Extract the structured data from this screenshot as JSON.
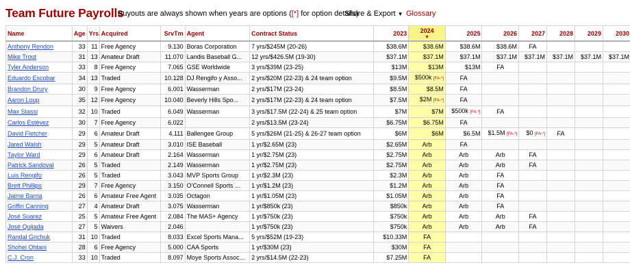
{
  "header": {
    "title": "Team Future Payrolls",
    "note_prefix": "Buyouts are always shown when years are options (",
    "note_marker": "[*]",
    "note_suffix": " for option details)",
    "share_label": "Share & Export",
    "glossary_label": "Glossary"
  },
  "columns": {
    "name": "Name",
    "age": "Age",
    "yrs": "Yrs",
    "acquired": "Acquired",
    "srvtm": "SrvTm",
    "agent": "Agent",
    "contract": "Contract Status",
    "y2023": "2023",
    "y2024": "2024",
    "y2025": "2025",
    "y2026": "2026",
    "y2027": "2027",
    "y2028": "2028",
    "y2029": "2029",
    "y2030": "2030"
  },
  "rows": [
    {
      "name": "Anthony Rendon",
      "age": "33",
      "yrs": "11",
      "acq": "Free Agency",
      "srv": "9.130",
      "agent": "Boras Corporation",
      "contract": "7 yrs/$245M (20-26)",
      "y23": "$38.6M",
      "y24": "$38.6M",
      "y25": "$38.6M",
      "y26": "$38.6M",
      "y27": "FA",
      "y28": "",
      "y29": "",
      "y30": ""
    },
    {
      "name": "Mike Trout",
      "age": "31",
      "yrs": "13",
      "acq": "Amateur Draft",
      "srv": "11.070",
      "agent": "Landis Baseball G...",
      "contract": "12 yrs/$426.5M (19-30)",
      "y23": "$37.1M",
      "y24": "$37.1M",
      "y25": "$37.1M",
      "y26": "$37.1M",
      "y27": "$37.1M",
      "y28": "$37.1M",
      "y29": "$37.1M",
      "y30": "$37.1M"
    },
    {
      "name": "Tyler Anderson",
      "age": "33",
      "yrs": "8",
      "acq": "Free Agency",
      "srv": "7.065",
      "agent": "GSE Worldwide",
      "contract": "3 yrs/$39M (23-25)",
      "y23": "$13M",
      "y24": "$13M",
      "y25": "$13M",
      "y26": "FA",
      "y27": "",
      "y28": "",
      "y29": "",
      "y30": ""
    },
    {
      "name": "Eduardo Escobar",
      "age": "34",
      "yrs": "13",
      "acq": "Traded",
      "srv": "10.128",
      "agent": "DJ Rengifo y Asso...",
      "contract": "2 yrs/$20M (22-23) & 24 team option",
      "y23": "$9.5M",
      "y24": "$500k",
      "y24f": "[FA-*]",
      "y25": "FA",
      "y26": "",
      "y27": "",
      "y28": "",
      "y29": "",
      "y30": ""
    },
    {
      "name": "Brandon Drury",
      "age": "30",
      "yrs": "9",
      "acq": "Free Agency",
      "srv": "6.001",
      "agent": "Wasserman",
      "contract": "2 yrs/$17M (23-24)",
      "y23": "$8.5M",
      "y24": "$8.5M",
      "y25": "FA",
      "y26": "",
      "y27": "",
      "y28": "",
      "y29": "",
      "y30": ""
    },
    {
      "name": "Aaron Loup",
      "age": "35",
      "yrs": "12",
      "acq": "Free Agency",
      "srv": "10.040",
      "agent": "Beverly Hills Spo...",
      "contract": "2 yrs/$17M (22-23) & 24 team option",
      "y23": "$7.5M",
      "y24": "$2M",
      "y24f": "[FA-*]",
      "y25": "FA",
      "y26": "",
      "y27": "",
      "y28": "",
      "y29": "",
      "y30": ""
    },
    {
      "name": "Max Stassi",
      "age": "32",
      "yrs": "10",
      "acq": "Traded",
      "srv": "6.049",
      "agent": "Wasserman",
      "contract": "3 yrs/$17.5M (22-24) & 25 team option",
      "y23": "$7M",
      "y24": "$7M",
      "y25": "$500k",
      "y25f": "[FA-*]",
      "y26": "FA",
      "y27": "",
      "y28": "",
      "y29": "",
      "y30": ""
    },
    {
      "name": "Carlos Estévez",
      "age": "30",
      "yrs": "7",
      "acq": "Free Agency",
      "srv": "6.022",
      "agent": "",
      "contract": "2 yrs/$13.5M (23-24)",
      "y23": "$6.75M",
      "y24": "$6.75M",
      "y25": "FA",
      "y26": "",
      "y27": "",
      "y28": "",
      "y29": "",
      "y30": ""
    },
    {
      "name": "David Fletcher",
      "age": "29",
      "yrs": "6",
      "acq": "Amateur Draft",
      "srv": "4.111",
      "agent": "Ballengee Group",
      "contract": "5 yrs/$26M (21-25) & 26-27 team option",
      "y23": "$6M",
      "y24": "$6M",
      "y25": "$6.5M",
      "y26": "$1.5M",
      "y26f": "[FA-*]",
      "y27": "$0",
      "y27f": "[FA-*]",
      "y28": "FA",
      "y29": "",
      "y30": ""
    },
    {
      "name": "Jared Walsh",
      "age": "29",
      "yrs": "5",
      "acq": "Amateur Draft",
      "srv": "3.010",
      "agent": "ISE Baseball",
      "contract": "1 yr/$2.65M (23)",
      "y23": "$2.65M",
      "y24": "Arb",
      "y25": "FA",
      "y26": "",
      "y27": "",
      "y28": "",
      "y29": "",
      "y30": ""
    },
    {
      "name": "Taylor Ward",
      "age": "29",
      "yrs": "6",
      "acq": "Amateur Draft",
      "srv": "2.164",
      "agent": "Wasserman",
      "contract": "1 yr/$2.75M (23)",
      "y23": "$2.75M",
      "y24": "Arb",
      "y25": "Arb",
      "y26": "Arb",
      "y27": "FA",
      "y28": "",
      "y29": "",
      "y30": ""
    },
    {
      "name": "Patrick Sandoval",
      "age": "26",
      "yrs": "5",
      "acq": "Traded",
      "srv": "2.149",
      "agent": "Wasserman",
      "contract": "1 yr/$2.75M (23)",
      "y23": "$2.75M",
      "y24": "Arb",
      "y25": "Arb",
      "y26": "Arb",
      "y27": "FA",
      "y28": "",
      "y29": "",
      "y30": ""
    },
    {
      "name": "Luis Rengifo",
      "age": "26",
      "yrs": "5",
      "acq": "Traded",
      "srv": "3.043",
      "agent": "MVP Sports Group",
      "contract": "1 yr/$2.3M (23)",
      "y23": "$2.3M",
      "y24": "Arb",
      "y25": "Arb",
      "y26": "FA",
      "y27": "",
      "y28": "",
      "y29": "",
      "y30": ""
    },
    {
      "name": "Brett Phillips",
      "age": "29",
      "yrs": "7",
      "acq": "Free Agency",
      "srv": "3.150",
      "agent": "O'Connell Sports ...",
      "contract": "1 yr/$1.2M (23)",
      "y23": "$1.2M",
      "y24": "Arb",
      "y25": "Arb",
      "y26": "FA",
      "y27": "",
      "y28": "",
      "y29": "",
      "y30": ""
    },
    {
      "name": "Jaime Barria",
      "age": "26",
      "yrs": "6",
      "acq": "Amateur Free Agent",
      "srv": "3.035",
      "agent": "Octagon",
      "contract": "1 yr/$1.05M (23)",
      "y23": "$1.05M",
      "y24": "Arb",
      "y25": "Arb",
      "y26": "FA",
      "y27": "",
      "y28": "",
      "y29": "",
      "y30": ""
    },
    {
      "name": "Griffin Canning",
      "age": "27",
      "yrs": "4",
      "acq": "Amateur Draft",
      "srv": "3.075",
      "agent": "Wasserman",
      "contract": "1 yr/$850k (23)",
      "y23": "$850k",
      "y24": "Arb",
      "y25": "Arb",
      "y26": "FA",
      "y27": "",
      "y28": "",
      "y29": "",
      "y30": ""
    },
    {
      "name": "José Suarez",
      "age": "25",
      "yrs": "5",
      "acq": "Amateur Free Agent",
      "srv": "2.084",
      "agent": "The MAS+ Agency",
      "contract": "1 yr/$750k (23)",
      "y23": "$750k",
      "y24": "Arb",
      "y25": "Arb",
      "y26": "Arb",
      "y27": "FA",
      "y28": "",
      "y29": "",
      "y30": ""
    },
    {
      "name": "José Quijada",
      "age": "27",
      "yrs": "5",
      "acq": "Waivers",
      "srv": "2.046",
      "agent": "",
      "contract": "1 yr/$750k (23)",
      "y23": "$750k",
      "y24": "Arb",
      "y25": "Arb",
      "y26": "Arb",
      "y27": "FA",
      "y28": "",
      "y29": "",
      "y30": ""
    },
    {
      "name": "Randal Grichuk",
      "age": "31",
      "yrs": "10",
      "acq": "Traded",
      "srv": "8.033",
      "agent": "Excel Sports Mana...",
      "contract": "5 yrs/$52M (19-23)",
      "y23": "$10.33M",
      "y24": "FA",
      "y25": "",
      "y26": "",
      "y27": "",
      "y28": "",
      "y29": "",
      "y30": ""
    },
    {
      "name": "Shohei Ohtani",
      "age": "28",
      "yrs": "6",
      "acq": "Free Agency",
      "srv": "5.000",
      "agent": "CAA Sports",
      "contract": "1 yr/$30M (23)",
      "y23": "$30M",
      "y24": "FA",
      "y25": "",
      "y26": "",
      "y27": "",
      "y28": "",
      "y29": "",
      "y30": ""
    },
    {
      "name": "C.J. Cron",
      "age": "33",
      "yrs": "10",
      "acq": "Traded",
      "srv": "8.097",
      "agent": "Moye Sports Assoc...",
      "contract": "2 yrs/$14.5M (22-23)",
      "y23": "$7.25M",
      "y24": "FA",
      "y25": "",
      "y26": "",
      "y27": "",
      "y28": "",
      "y29": "",
      "y30": ""
    }
  ]
}
